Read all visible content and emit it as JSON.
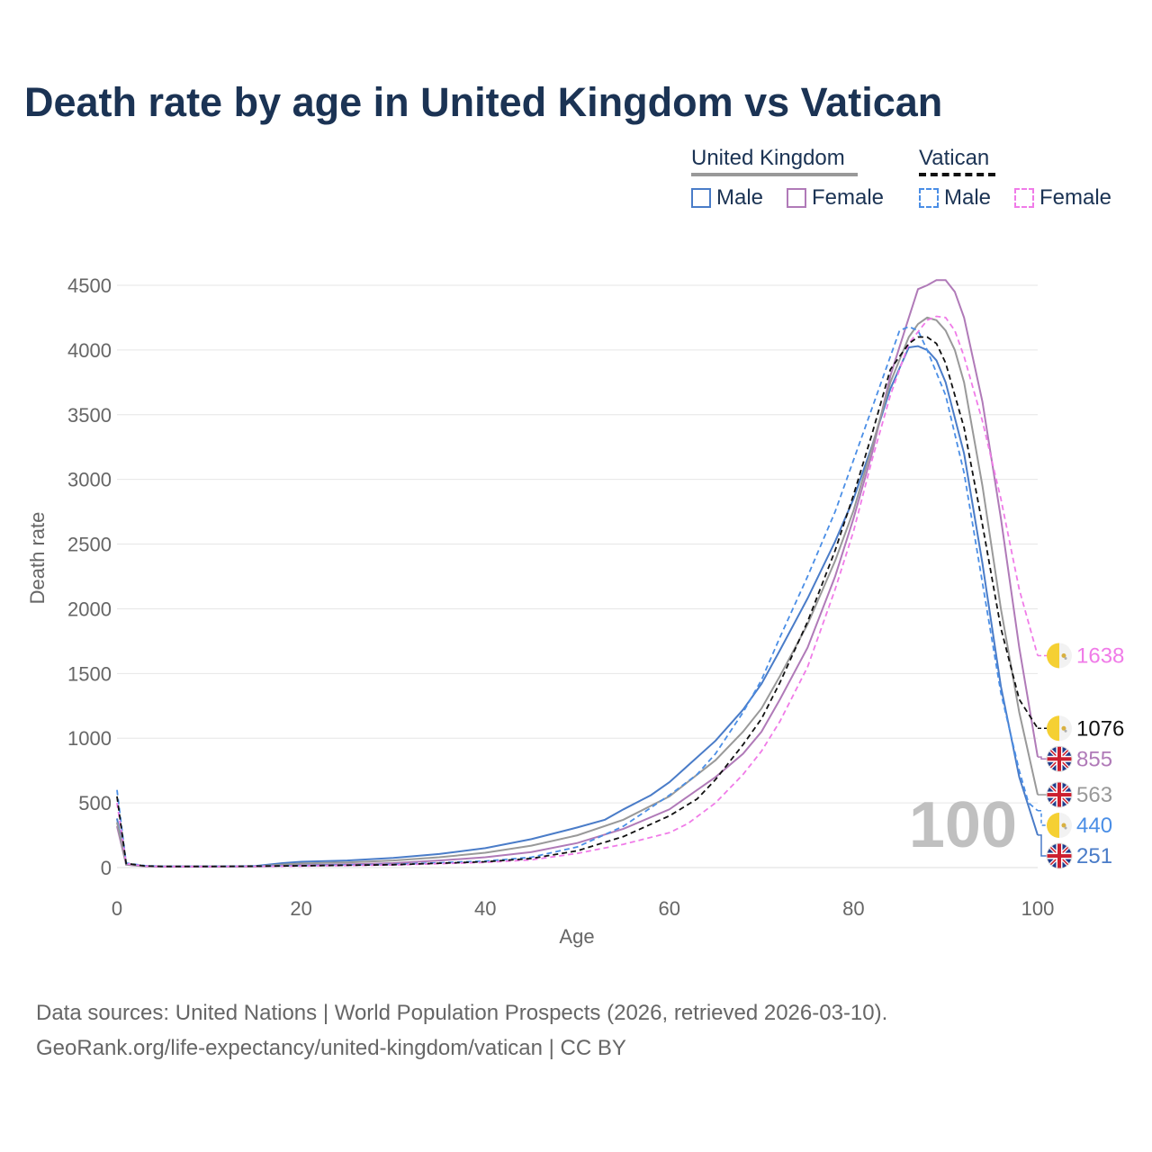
{
  "title": "Death rate by age in United Kingdom vs Vatican",
  "legend": {
    "groups": [
      {
        "name": "United Kingdom",
        "line_color": "#999999",
        "line_style": "solid",
        "items": [
          {
            "label": "Male",
            "color": "#4a7cc8",
            "style": "solid"
          },
          {
            "label": "Female",
            "color": "#b07ab8",
            "style": "solid"
          }
        ]
      },
      {
        "name": "Vatican",
        "line_color": "#111111",
        "line_style": "dashed",
        "items": [
          {
            "label": "Male",
            "color": "#4a8ee6",
            "style": "dashed"
          },
          {
            "label": "Female",
            "color": "#f07be8",
            "style": "dashed"
          }
        ]
      }
    ]
  },
  "year_watermark": "100",
  "source": {
    "line1": "Data sources: United Nations | World Population Prospects (2026, retrieved 2026-03-10).",
    "line2": "GeoRank.org/life-expectancy/united-kingdom/vatican | CC BY"
  },
  "chart_data": {
    "type": "line",
    "title": "Death rate by age in United Kingdom vs Vatican",
    "xlabel": "Age",
    "ylabel": "Death rate",
    "xlim": [
      0,
      100
    ],
    "ylim": [
      0,
      4700
    ],
    "xticks": [
      0,
      20,
      40,
      60,
      80,
      100
    ],
    "yticks": [
      0,
      500,
      1000,
      1500,
      2000,
      2500,
      3000,
      3500,
      4000,
      4500
    ],
    "grid": true,
    "series": [
      {
        "name": "United Kingdom Male",
        "country": "United Kingdom",
        "color": "#4a7cc8",
        "dash": "solid",
        "end_label": "251",
        "flag": "uk",
        "points": [
          [
            0,
            380
          ],
          [
            1,
            25
          ],
          [
            3,
            12
          ],
          [
            5,
            8
          ],
          [
            10,
            8
          ],
          [
            15,
            12
          ],
          [
            18,
            35
          ],
          [
            20,
            45
          ],
          [
            25,
            55
          ],
          [
            30,
            75
          ],
          [
            35,
            105
          ],
          [
            40,
            150
          ],
          [
            45,
            220
          ],
          [
            50,
            310
          ],
          [
            53,
            370
          ],
          [
            55,
            450
          ],
          [
            58,
            560
          ],
          [
            60,
            660
          ],
          [
            65,
            980
          ],
          [
            68,
            1220
          ],
          [
            70,
            1420
          ],
          [
            72,
            1680
          ],
          [
            75,
            2080
          ],
          [
            78,
            2520
          ],
          [
            80,
            2850
          ],
          [
            82,
            3260
          ],
          [
            84,
            3700
          ],
          [
            86,
            4020
          ],
          [
            87,
            4030
          ],
          [
            88,
            4000
          ],
          [
            89,
            3920
          ],
          [
            90,
            3750
          ],
          [
            92,
            3200
          ],
          [
            94,
            2350
          ],
          [
            96,
            1400
          ],
          [
            98,
            700
          ],
          [
            100,
            251
          ]
        ]
      },
      {
        "name": "United Kingdom Female",
        "country": "United Kingdom",
        "color": "#b07ab8",
        "dash": "solid",
        "end_label": "855",
        "flag": "uk",
        "points": [
          [
            0,
            320
          ],
          [
            1,
            22
          ],
          [
            3,
            10
          ],
          [
            5,
            7
          ],
          [
            10,
            7
          ],
          [
            15,
            9
          ],
          [
            20,
            18
          ],
          [
            25,
            25
          ],
          [
            30,
            35
          ],
          [
            35,
            55
          ],
          [
            40,
            80
          ],
          [
            45,
            120
          ],
          [
            50,
            190
          ],
          [
            55,
            300
          ],
          [
            60,
            450
          ],
          [
            65,
            700
          ],
          [
            68,
            880
          ],
          [
            70,
            1050
          ],
          [
            72,
            1300
          ],
          [
            75,
            1700
          ],
          [
            78,
            2250
          ],
          [
            80,
            2700
          ],
          [
            82,
            3200
          ],
          [
            84,
            3800
          ],
          [
            86,
            4250
          ],
          [
            87,
            4470
          ],
          [
            88,
            4500
          ],
          [
            89,
            4540
          ],
          [
            90,
            4540
          ],
          [
            91,
            4450
          ],
          [
            92,
            4250
          ],
          [
            94,
            3600
          ],
          [
            96,
            2700
          ],
          [
            98,
            1700
          ],
          [
            100,
            855
          ]
        ]
      },
      {
        "name": "United Kingdom Both",
        "country": "United Kingdom",
        "color": "#999999",
        "dash": "solid",
        "end_label": "563",
        "flag": "uk",
        "points": [
          [
            0,
            350
          ],
          [
            1,
            24
          ],
          [
            3,
            11
          ],
          [
            5,
            8
          ],
          [
            10,
            8
          ],
          [
            15,
            10
          ],
          [
            20,
            32
          ],
          [
            25,
            40
          ],
          [
            30,
            55
          ],
          [
            35,
            80
          ],
          [
            40,
            115
          ],
          [
            45,
            170
          ],
          [
            50,
            250
          ],
          [
            55,
            370
          ],
          [
            60,
            550
          ],
          [
            65,
            830
          ],
          [
            68,
            1050
          ],
          [
            70,
            1230
          ],
          [
            72,
            1480
          ],
          [
            75,
            1880
          ],
          [
            78,
            2370
          ],
          [
            80,
            2760
          ],
          [
            82,
            3250
          ],
          [
            84,
            3750
          ],
          [
            86,
            4100
          ],
          [
            87,
            4200
          ],
          [
            88,
            4250
          ],
          [
            89,
            4230
          ],
          [
            90,
            4150
          ],
          [
            91,
            4000
          ],
          [
            92,
            3750
          ],
          [
            94,
            2950
          ],
          [
            96,
            2000
          ],
          [
            98,
            1200
          ],
          [
            100,
            563
          ]
        ]
      },
      {
        "name": "Vatican Male",
        "country": "Vatican",
        "color": "#4a8ee6",
        "dash": "dashed",
        "end_label": "440",
        "flag": "va",
        "points": [
          [
            0,
            600
          ],
          [
            1,
            35
          ],
          [
            3,
            15
          ],
          [
            5,
            10
          ],
          [
            10,
            10
          ],
          [
            15,
            12
          ],
          [
            20,
            15
          ],
          [
            30,
            25
          ],
          [
            40,
            50
          ],
          [
            45,
            80
          ],
          [
            50,
            160
          ],
          [
            55,
            320
          ],
          [
            60,
            560
          ],
          [
            63,
            720
          ],
          [
            65,
            880
          ],
          [
            68,
            1200
          ],
          [
            70,
            1450
          ],
          [
            72,
            1780
          ],
          [
            75,
            2250
          ],
          [
            78,
            2750
          ],
          [
            80,
            3150
          ],
          [
            82,
            3550
          ],
          [
            84,
            3950
          ],
          [
            85,
            4150
          ],
          [
            86,
            4180
          ],
          [
            87,
            4150
          ],
          [
            88,
            4000
          ],
          [
            90,
            3650
          ],
          [
            92,
            3050
          ],
          [
            94,
            2200
          ],
          [
            96,
            1350
          ],
          [
            98,
            750
          ],
          [
            99,
            500
          ],
          [
            100,
            440
          ]
        ]
      },
      {
        "name": "Vatican Female",
        "country": "Vatican",
        "color": "#f07be8",
        "dash": "dashed",
        "end_label": "1638",
        "flag": "va",
        "points": [
          [
            0,
            500
          ],
          [
            1,
            30
          ],
          [
            3,
            12
          ],
          [
            5,
            8
          ],
          [
            10,
            8
          ],
          [
            15,
            10
          ],
          [
            20,
            12
          ],
          [
            30,
            20
          ],
          [
            40,
            40
          ],
          [
            45,
            60
          ],
          [
            50,
            110
          ],
          [
            55,
            180
          ],
          [
            60,
            270
          ],
          [
            62,
            340
          ],
          [
            65,
            500
          ],
          [
            68,
            720
          ],
          [
            70,
            900
          ],
          [
            72,
            1130
          ],
          [
            75,
            1550
          ],
          [
            78,
            2150
          ],
          [
            80,
            2600
          ],
          [
            82,
            3150
          ],
          [
            84,
            3650
          ],
          [
            86,
            4050
          ],
          [
            88,
            4230
          ],
          [
            89,
            4260
          ],
          [
            90,
            4250
          ],
          [
            91,
            4150
          ],
          [
            92,
            3950
          ],
          [
            94,
            3450
          ],
          [
            96,
            2850
          ],
          [
            98,
            2150
          ],
          [
            100,
            1638
          ]
        ]
      },
      {
        "name": "Vatican Both",
        "country": "Vatican",
        "color": "#111111",
        "dash": "dashed",
        "end_label": "1076",
        "flag": "va",
        "points": [
          [
            0,
            550
          ],
          [
            1,
            32
          ],
          [
            3,
            13
          ],
          [
            5,
            9
          ],
          [
            10,
            9
          ],
          [
            15,
            11
          ],
          [
            20,
            14
          ],
          [
            30,
            22
          ],
          [
            40,
            45
          ],
          [
            45,
            70
          ],
          [
            50,
            130
          ],
          [
            55,
            240
          ],
          [
            60,
            400
          ],
          [
            63,
            530
          ],
          [
            65,
            680
          ],
          [
            68,
            950
          ],
          [
            70,
            1150
          ],
          [
            72,
            1430
          ],
          [
            75,
            1900
          ],
          [
            78,
            2450
          ],
          [
            80,
            2880
          ],
          [
            82,
            3350
          ],
          [
            84,
            3850
          ],
          [
            86,
            4050
          ],
          [
            87,
            4100
          ],
          [
            88,
            4100
          ],
          [
            89,
            4050
          ],
          [
            90,
            3900
          ],
          [
            92,
            3400
          ],
          [
            94,
            2650
          ],
          [
            96,
            1850
          ],
          [
            98,
            1300
          ],
          [
            100,
            1076
          ]
        ]
      }
    ]
  }
}
